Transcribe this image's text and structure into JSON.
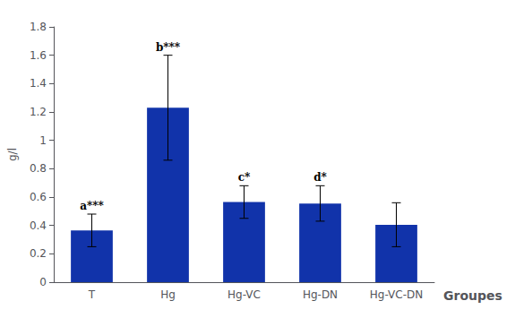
{
  "chart_data": {
    "type": "bar",
    "categories": [
      "T",
      "Hg",
      "Hg-VC",
      "Hg-DN",
      "Hg-VC-DN"
    ],
    "values": [
      0.365,
      1.23,
      0.565,
      0.555,
      0.405
    ],
    "errors": [
      0.115,
      0.37,
      0.115,
      0.125,
      0.155
    ],
    "color": "#1133aa",
    "annotations": [
      "a***",
      "b***",
      "c*",
      "d*",
      null
    ],
    "ylabel": "g/l",
    "xlabel": "Groupes",
    "ylim": [
      0,
      1.8
    ],
    "yticks": [
      0,
      0.2,
      0.4,
      0.6,
      0.8,
      1,
      1.2,
      1.4,
      1.6,
      1.8
    ],
    "grid": false
  }
}
